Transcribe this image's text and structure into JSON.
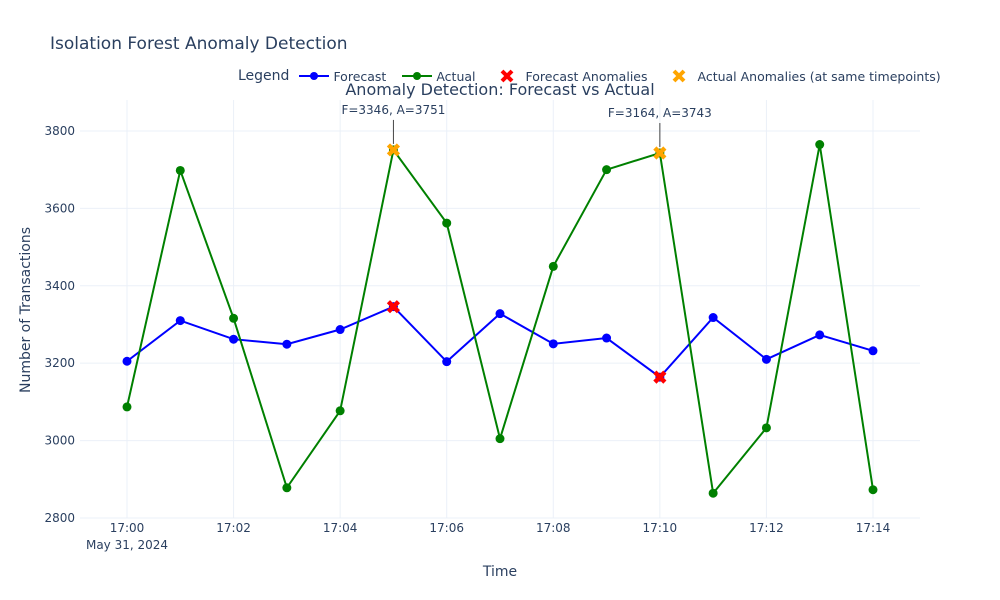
{
  "chart_data": {
    "type": "line",
    "title": "Isolation Forest Anomaly Detection",
    "subtitle": "Anomaly Detection: Forecast vs Actual",
    "legend_title": "Legend",
    "legend_position": "top",
    "xlabel": "Time",
    "ylabel": "Number of Transactions",
    "x": [
      "17:00",
      "17:01",
      "17:02",
      "17:03",
      "17:04",
      "17:05",
      "17:06",
      "17:07",
      "17:08",
      "17:09",
      "17:10",
      "17:11",
      "17:12",
      "17:13",
      "17:14"
    ],
    "x_ticks": [
      "17:00",
      "17:02",
      "17:04",
      "17:06",
      "17:08",
      "17:10",
      "17:12",
      "17:14"
    ],
    "x_date_label": "May 31, 2024",
    "ylim": [
      2800,
      3880
    ],
    "y_ticks": [
      2800,
      3000,
      3200,
      3400,
      3600,
      3800
    ],
    "grid": true,
    "series": [
      {
        "name": "Forecast",
        "color": "#0000ff",
        "marker": "circle",
        "values": [
          3205,
          3310,
          3262,
          3249,
          3287,
          3346,
          3204,
          3328,
          3250,
          3265,
          3164,
          3318,
          3210,
          3273,
          3232
        ]
      },
      {
        "name": "Actual",
        "color": "#008000",
        "marker": "circle",
        "values": [
          3087,
          3698,
          3316,
          2878,
          3077,
          3751,
          3562,
          3005,
          3450,
          3700,
          3743,
          2864,
          3033,
          3765,
          2873
        ]
      }
    ],
    "anomalies": [
      {
        "name": "Forecast Anomalies",
        "color": "#ff0000",
        "marker": "x",
        "points": [
          {
            "x": "17:05",
            "y": 3346
          },
          {
            "x": "17:10",
            "y": 3164
          }
        ]
      },
      {
        "name": "Actual Anomalies (at same timepoints)",
        "color": "#ffa500",
        "marker": "x",
        "points": [
          {
            "x": "17:05",
            "y": 3751
          },
          {
            "x": "17:10",
            "y": 3743
          }
        ]
      }
    ],
    "annotations": [
      {
        "x": "17:05",
        "y": 3751,
        "text": "F=3346, A=3751"
      },
      {
        "x": "17:10",
        "y": 3743,
        "text": "F=3164, A=3743"
      }
    ]
  }
}
